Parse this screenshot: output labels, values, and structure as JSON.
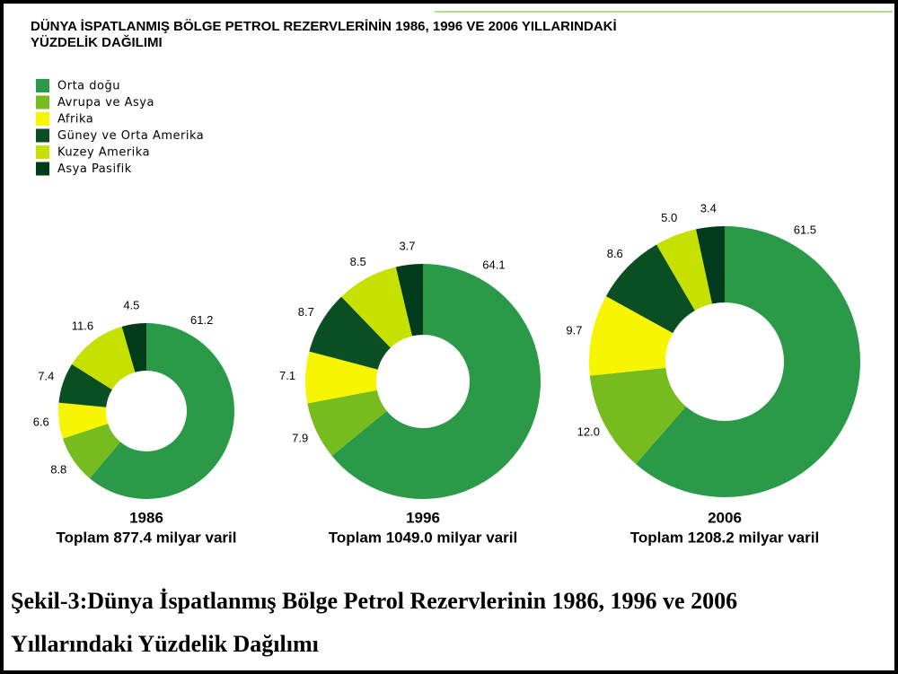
{
  "title": [
    "DÜNYA İSPATLANMIŞ BÖLGE PETROL REZERVLERİNİN 1986, 1996 VE 2006 YILLARINDAKİ",
    "YÜZDELİK DAĞILIMI"
  ],
  "legend": {
    "labels": [
      "Orta doğu",
      "Avrupa ve Asya",
      "Afrika",
      "Güney ve Orta Amerika",
      "Kuzey Amerika",
      "Asya Pasifik"
    ],
    "colors": [
      "#2a9a48",
      "#77bc1f",
      "#f8f500",
      "#0a4f22",
      "#c6e000",
      "#003c1b"
    ]
  },
  "chart_data": [
    {
      "type": "pie",
      "donut": true,
      "title": "1986",
      "subtitle": "Toplam 877.4 milyar varil",
      "values": [
        61.2,
        8.8,
        6.6,
        7.4,
        11.6,
        4.5
      ],
      "value_labels": [
        "61.2",
        "8.8",
        "6.6",
        "7.4",
        "11.6",
        "4.5"
      ]
    },
    {
      "type": "pie",
      "donut": true,
      "title": "1996",
      "subtitle": "Toplam 1049.0 milyar varil",
      "values": [
        64.1,
        7.9,
        7.1,
        8.7,
        8.5,
        3.7
      ],
      "value_labels": [
        "64.1",
        "7.9",
        "7.1",
        "8.7",
        "8.5",
        "3.7"
      ]
    },
    {
      "type": "pie",
      "donut": true,
      "title": "2006",
      "subtitle": "Toplam 1208.2 milyar varil",
      "values": [
        61.5,
        12,
        9.7,
        8.6,
        5,
        3.4
      ],
      "value_labels": [
        "61.5",
        "12.0",
        "9.7",
        "8.6",
        "5.0",
        "3.4"
      ]
    }
  ],
  "caption": [
    "Şekil-3:Dünya İspatlanmış Bölge Petrol Rezervlerinin 1986, 1996 ve 2006",
    "Yıllarındaki Yüzdelik Dağılımı"
  ]
}
